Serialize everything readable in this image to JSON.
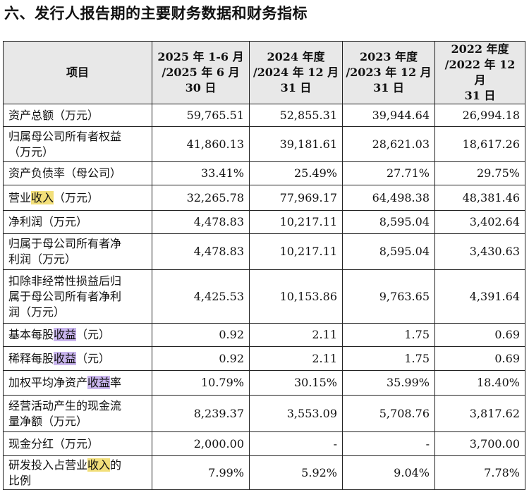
{
  "heading": "六、发行人报告期的主要财务数据和财务指标",
  "table": {
    "header": {
      "item": "项目",
      "periods": [
        {
          "line1": "2025 年 1-6 月",
          "line2": "/2025 年 6 月",
          "line3": "30 日"
        },
        {
          "line1": "2024 年度",
          "line2": "/2024 年 12 月",
          "line3": "31 日"
        },
        {
          "line1": "2023 年度",
          "line2": "/2023 年 12 月",
          "line3": "31 日"
        },
        {
          "line1": "2022 年度",
          "line2": "/2022 年 12 月",
          "line3": "31 日"
        }
      ]
    },
    "rows": [
      {
        "label": "资产总额（万元）",
        "values": [
          "59,765.51",
          "52,855.31",
          "39,944.64",
          "26,994.18"
        ]
      },
      {
        "label_line1": "归属母公司所有者权益",
        "label_line2": "（万元）",
        "values": [
          "41,860.13",
          "39,181.61",
          "28,621.03",
          "18,617.26"
        ]
      },
      {
        "label": "资产负债率（母公司）",
        "values": [
          "33.41%",
          "25.49%",
          "27.71%",
          "29.75%"
        ]
      },
      {
        "label_pre": "营业",
        "label_hl": "收入",
        "label_post": "（万元）",
        "values": [
          "32,265.78",
          "77,969.17",
          "64,498.38",
          "48,381.46"
        ]
      },
      {
        "label": "净利润（万元）",
        "values": [
          "4,478.83",
          "10,217.11",
          "8,595.04",
          "3,402.64"
        ]
      },
      {
        "label_line1": "归属于母公司所有者净",
        "label_line2": "利润（万元）",
        "values": [
          "4,478.83",
          "10,217.11",
          "8,595.04",
          "3,430.63"
        ]
      },
      {
        "label_line1": "扣除非经常性损益后归",
        "label_line2": "属于母公司所有者净利",
        "label_line3": "润（万元）",
        "values": [
          "4,425.53",
          "10,153.86",
          "9,763.65",
          "4,391.64"
        ]
      },
      {
        "label_pre": "基本每股",
        "label_hl": "收益",
        "label_post": "（元）",
        "values": [
          "0.92",
          "2.11",
          "1.75",
          "0.69"
        ]
      },
      {
        "label_pre": "稀释每股",
        "label_hl": "收益",
        "label_post": "（元）",
        "values": [
          "0.92",
          "2.11",
          "1.75",
          "0.69"
        ]
      },
      {
        "label_pre": "加权平均净资产",
        "label_hl": "收益",
        "label_post": "率",
        "values": [
          "10.79%",
          "30.15%",
          "35.99%",
          "18.40%"
        ]
      },
      {
        "label_line1": "经营活动产生的现金流",
        "label_line2": "量净额（万元）",
        "values": [
          "8,239.37",
          "3,553.09",
          "5,708.76",
          "3,817.62"
        ]
      },
      {
        "label": "现金分红（万元）",
        "values": [
          "2,000.00",
          "-",
          "-",
          "3,700.00"
        ]
      },
      {
        "label_pre": "研发投入占营业",
        "label_hl": "收入",
        "label_post": "的",
        "label_line2": "比例",
        "values": [
          "7.99%",
          "5.92%",
          "9.04%",
          "7.78%"
        ]
      }
    ]
  },
  "colors": {
    "highlight_yellow": "#f2df7a",
    "highlight_purple": "#c9b5ee",
    "header_bg": "#e8e8e8",
    "border": "#222222"
  }
}
